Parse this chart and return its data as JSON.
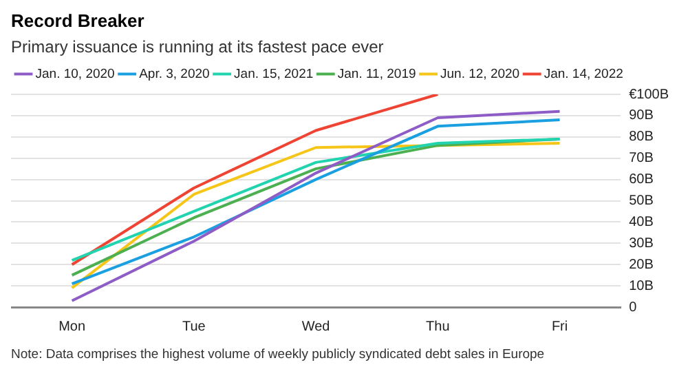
{
  "chart_data": {
    "type": "line",
    "title": "Record Breaker",
    "subtitle": "Primary issuance is running at its fastest pace ever",
    "categories": [
      "Mon",
      "Tue",
      "Wed",
      "Thu",
      "Fri"
    ],
    "series": [
      {
        "name": "Jan. 10, 2020",
        "color": "#8e5cc6",
        "values": [
          3,
          31,
          63,
          89,
          92
        ]
      },
      {
        "name": "Apr. 3, 2020",
        "color": "#1aa0e0",
        "values": [
          11,
          33,
          60,
          85,
          88
        ]
      },
      {
        "name": "Jan. 15, 2021",
        "color": "#22d3b0",
        "values": [
          22,
          45,
          68,
          77,
          79
        ]
      },
      {
        "name": "Jan. 11, 2019",
        "color": "#4caf50",
        "values": [
          15,
          42,
          65,
          76,
          79
        ]
      },
      {
        "name": "Jun. 12, 2020",
        "color": "#f5c518",
        "values": [
          9,
          53,
          75,
          76,
          77
        ]
      },
      {
        "name": "Jan. 14, 2022",
        "color": "#ef4433",
        "values": [
          20,
          56,
          83,
          100,
          null
        ]
      }
    ],
    "ylim": [
      0,
      100
    ],
    "yticks": [
      {
        "value": 0,
        "label": "0"
      },
      {
        "value": 10,
        "label": "10B"
      },
      {
        "value": 20,
        "label": "20B"
      },
      {
        "value": 30,
        "label": "30B"
      },
      {
        "value": 40,
        "label": "40B"
      },
      {
        "value": 50,
        "label": "50B"
      },
      {
        "value": 60,
        "label": "60B"
      },
      {
        "value": 70,
        "label": "70B"
      },
      {
        "value": 80,
        "label": "80B"
      },
      {
        "value": 90,
        "label": "90B"
      },
      {
        "value": 100,
        "label": "€100B"
      }
    ],
    "grid": "y",
    "legend": "top left",
    "marker": "none",
    "line_style": "solid",
    "annotations": [
      "Note: Data comprises the highest volume of weekly publicly syndicated debt sales in Europe"
    ]
  }
}
